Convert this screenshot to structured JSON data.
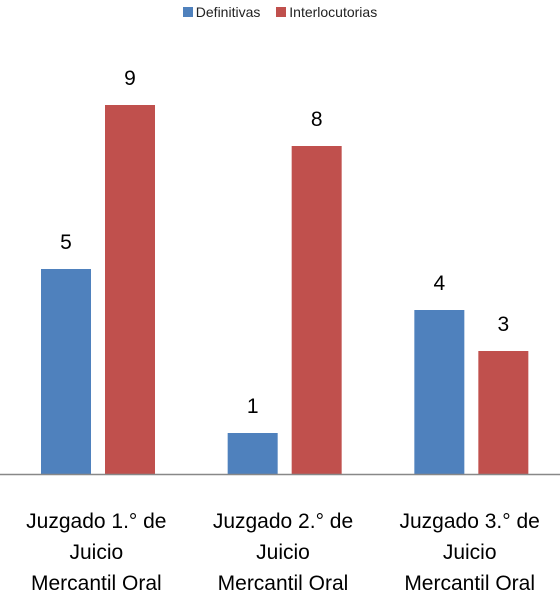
{
  "chart_data": {
    "type": "bar",
    "title": "",
    "xlabel": "",
    "ylabel": "",
    "ylim": [
      0,
      10
    ],
    "grid": false,
    "legend_position": "top",
    "categories": [
      [
        "Juzgado 1.° de",
        "Juicio",
        "Mercantil Oral"
      ],
      [
        "Juzgado 2.° de",
        "Juicio",
        "Mercantil Oral"
      ],
      [
        "Juzgado 3.° de",
        "Juicio",
        "Mercantil Oral"
      ]
    ],
    "series": [
      {
        "name": "Definitivas",
        "color": "#4F81BD",
        "values": [
          5,
          1,
          4
        ]
      },
      {
        "name": "Interlocutorias",
        "color": "#C0504D",
        "values": [
          9,
          8,
          3
        ]
      }
    ]
  }
}
